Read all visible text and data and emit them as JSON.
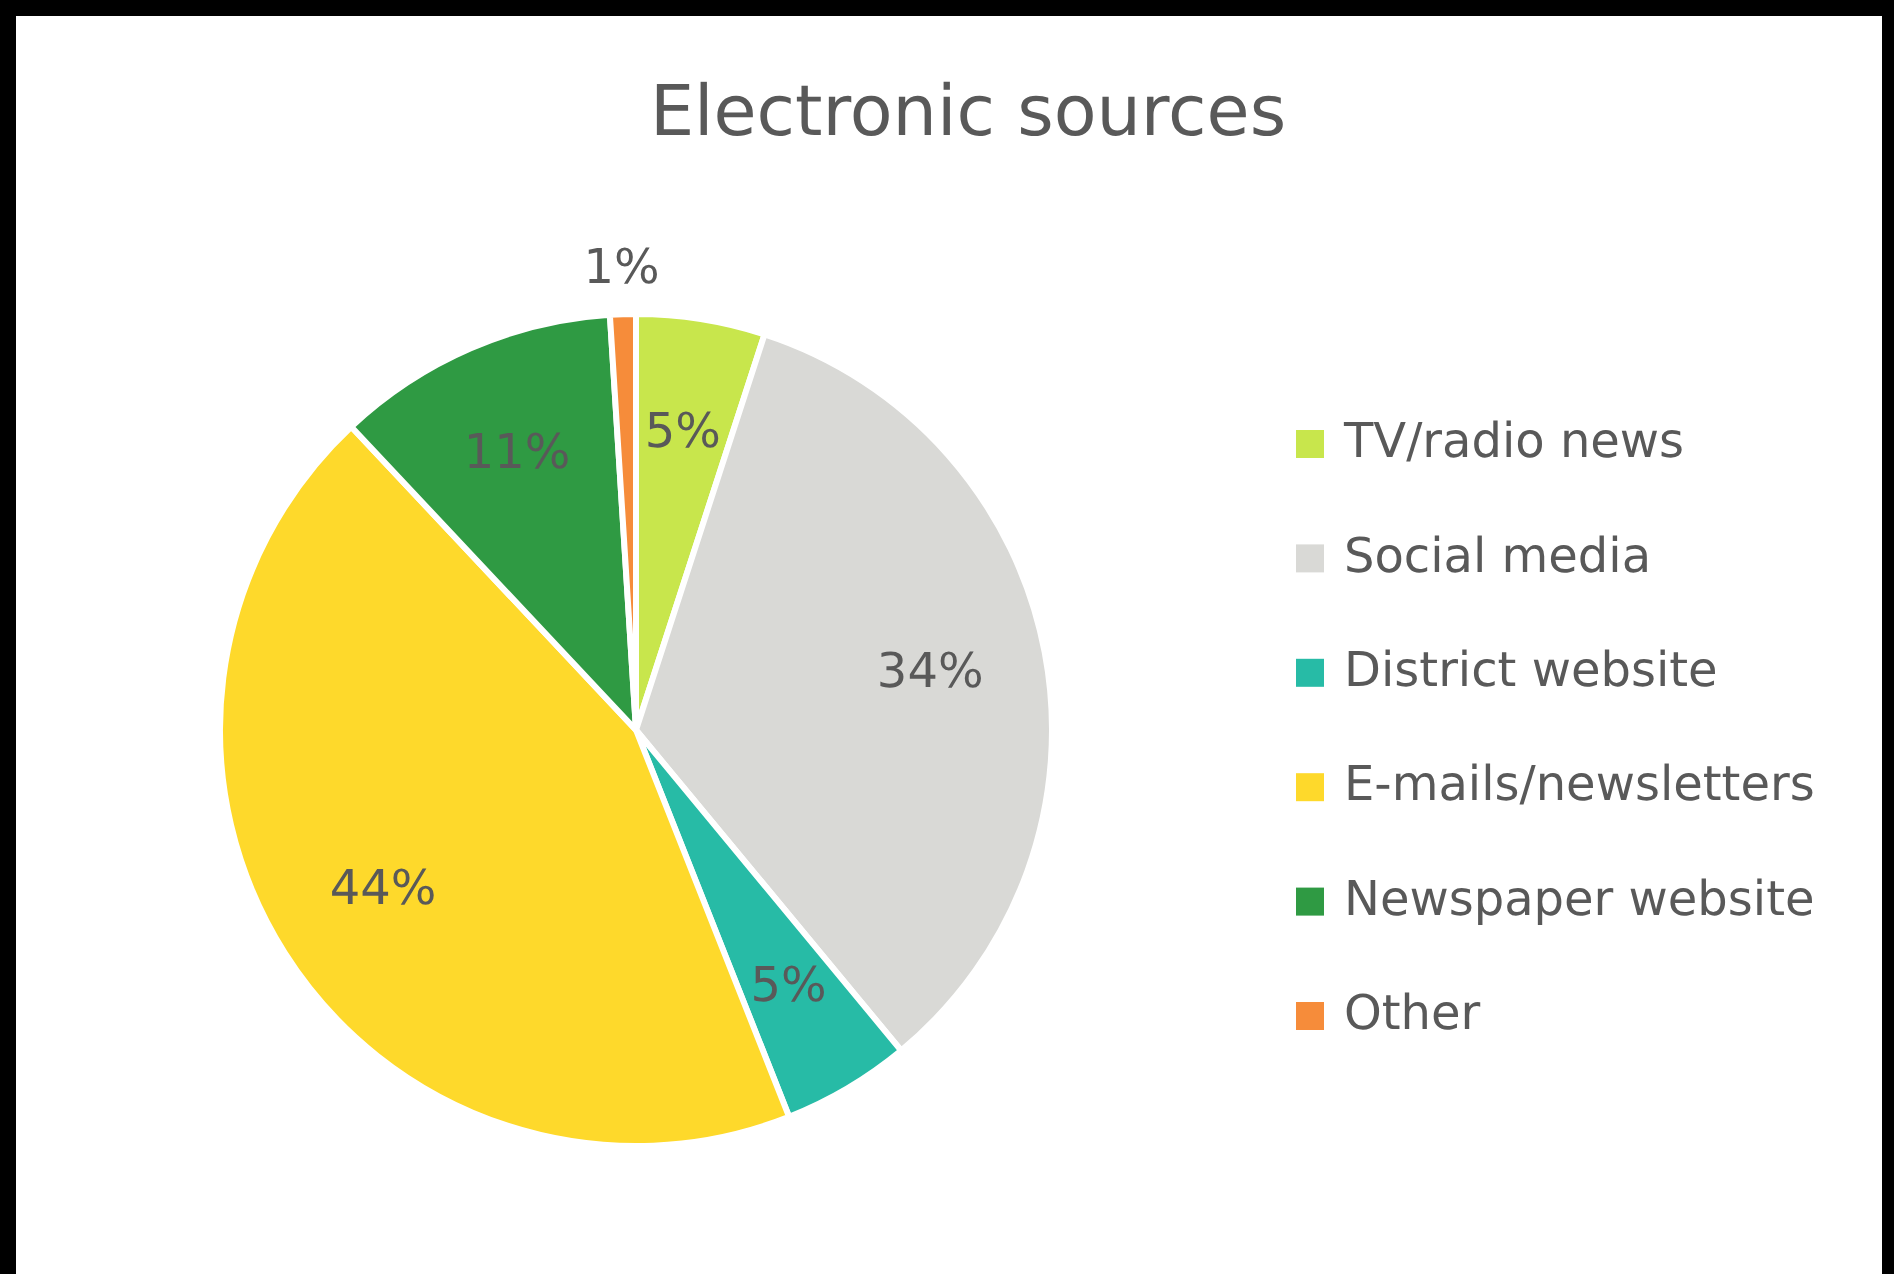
{
  "chart_data": {
    "type": "pie",
    "title": "Electronic sources",
    "categories": [
      "TV/radio news",
      "Social media",
      "District website",
      "E-mails/newsletters",
      "Newspaper website",
      "Other"
    ],
    "values": [
      5,
      34,
      5,
      44,
      11,
      1
    ],
    "value_labels": [
      "5%",
      "34%",
      "5%",
      "44%",
      "11%",
      "1%"
    ],
    "colors": [
      "#c8e64c",
      "#d9d9d6",
      "#27bba6",
      "#fed92b",
      "#2f9a43",
      "#f68c3a"
    ],
    "legend": "right"
  }
}
